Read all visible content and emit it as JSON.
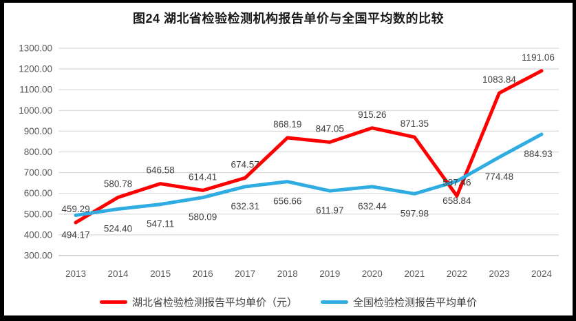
{
  "chart_data": {
    "type": "line",
    "title": "图24 湖北省检验检测机构报告单价与全国平均数的比较",
    "categories": [
      "2013",
      "2014",
      "2015",
      "2016",
      "2017",
      "2018",
      "2019",
      "2020",
      "2021",
      "2022",
      "2023",
      "2024"
    ],
    "series": [
      {
        "name": "湖北省检验检测报告平均单价（元）",
        "color": "#FE0000",
        "label_position": "above",
        "values": [
          459.29,
          580.78,
          646.58,
          614.41,
          674.57,
          868.19,
          847.05,
          915.26,
          871.35,
          587.46,
          1083.84,
          1191.06
        ]
      },
      {
        "name": "全国检验检测报告平均单价",
        "color": "#2FACE2",
        "label_position": "below",
        "values": [
          494.17,
          524.4,
          547.11,
          580.09,
          632.31,
          656.66,
          611.97,
          632.44,
          597.98,
          658.84,
          774.48,
          884.93
        ]
      }
    ],
    "ylim": [
      300,
      1300
    ],
    "y_ticks": [
      "300.00",
      "400.00",
      "500.00",
      "600.00",
      "700.00",
      "800.00",
      "900.00",
      "1000.00",
      "1100.00",
      "1200.00",
      "1300.00"
    ],
    "xlabel": "",
    "ylabel": "",
    "grid": "horizontal",
    "legend_position": "bottom",
    "colors": {
      "gridline": "#D9D9D9",
      "axis_line": "#BFBFBF",
      "tick_label": "#595959",
      "data_label": "#404040",
      "title": "#1a1a1a",
      "frame_border": "#000000",
      "background": "#FFFFFF"
    }
  }
}
